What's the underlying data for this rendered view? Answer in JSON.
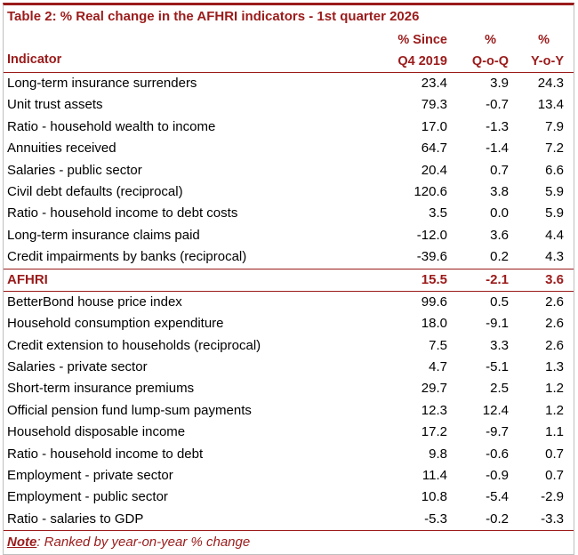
{
  "title": "Table 2: % Real change in the AFHRI indicators - 1st quarter 2026",
  "header": {
    "indicator": "Indicator",
    "col1_line1": "% Since",
    "col1_line2": "Q4 2019",
    "col2_line1": "%",
    "col2_line2": "Q-o-Q",
    "col3_line1": "%",
    "col3_line2": "Y-o-Y"
  },
  "rows_top": [
    {
      "label": "Long-term insurance surrenders",
      "since": "23.4",
      "qoq": "3.9",
      "yoy": "24.3"
    },
    {
      "label": "Unit trust assets",
      "since": "79.3",
      "qoq": "-0.7",
      "yoy": "13.4"
    },
    {
      "label": "Ratio - household wealth to income",
      "since": "17.0",
      "qoq": "-1.3",
      "yoy": "7.9"
    },
    {
      "label": "Annuities received",
      "since": "64.7",
      "qoq": "-1.4",
      "yoy": "7.2"
    },
    {
      "label": "Salaries - public sector",
      "since": "20.4",
      "qoq": "0.7",
      "yoy": "6.6"
    },
    {
      "label": "Civil debt defaults (reciprocal)",
      "since": "120.6",
      "qoq": "3.8",
      "yoy": "5.9"
    },
    {
      "label": "Ratio - household income to debt costs",
      "since": "3.5",
      "qoq": "0.0",
      "yoy": "5.9"
    },
    {
      "label": "Long-term insurance claims paid",
      "since": "-12.0",
      "qoq": "3.6",
      "yoy": "4.4"
    },
    {
      "label": "Credit impairments by banks (reciprocal)",
      "since": "-39.6",
      "qoq": "0.2",
      "yoy": "4.3"
    }
  ],
  "afhri": {
    "label": "AFHRI",
    "since": "15.5",
    "qoq": "-2.1",
    "yoy": "3.6"
  },
  "rows_bottom": [
    {
      "label": "BetterBond house price index",
      "since": "99.6",
      "qoq": "0.5",
      "yoy": "2.6"
    },
    {
      "label": "Household consumption expenditure",
      "since": "18.0",
      "qoq": "-9.1",
      "yoy": "2.6"
    },
    {
      "label": "Credit extension to households (reciprocal)",
      "since": "7.5",
      "qoq": "3.3",
      "yoy": "2.6"
    },
    {
      "label": "Salaries - private sector",
      "since": "4.7",
      "qoq": "-5.1",
      "yoy": "1.3"
    },
    {
      "label": "Short-term insurance premiums",
      "since": "29.7",
      "qoq": "2.5",
      "yoy": "1.2"
    },
    {
      "label": "Official pension fund lump-sum payments",
      "since": "12.3",
      "qoq": "12.4",
      "yoy": "1.2"
    },
    {
      "label": "Household disposable income",
      "since": "17.2",
      "qoq": "-9.7",
      "yoy": "1.1"
    },
    {
      "label": "Ratio - household income to debt",
      "since": "9.8",
      "qoq": "-0.6",
      "yoy": "0.7"
    },
    {
      "label": "Employment - private sector",
      "since": "11.4",
      "qoq": "-0.9",
      "yoy": "0.7"
    },
    {
      "label": "Employment - public sector",
      "since": "10.8",
      "qoq": "-5.4",
      "yoy": "-2.9"
    },
    {
      "label": "Ratio - salaries to GDP",
      "since": "-5.3",
      "qoq": "-0.2",
      "yoy": "-3.3"
    }
  ],
  "note": {
    "label": "Note",
    "text": ": Ranked by year-on-year % change"
  },
  "colors": {
    "accent": "#9b1b1b",
    "border": "#bfbfbf"
  }
}
